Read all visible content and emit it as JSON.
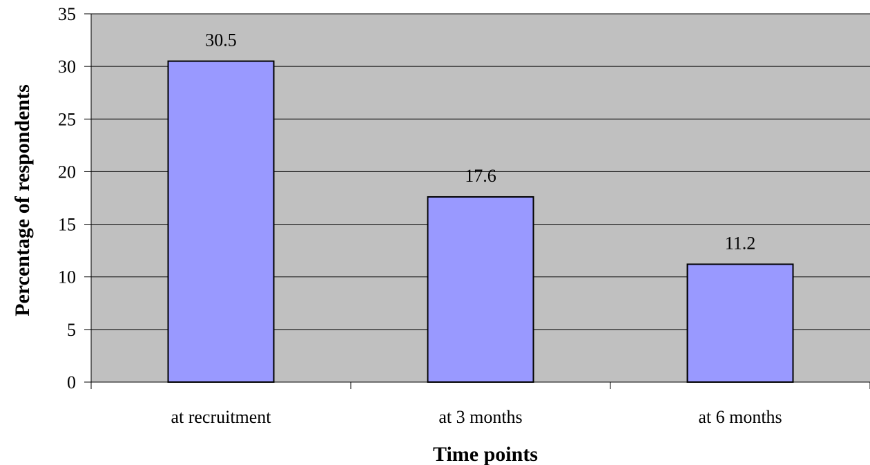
{
  "colors": {
    "plot_background": "#c0c0c0",
    "bar_fill": "#9999ff",
    "bar_stroke": "#000000",
    "gridline": "#000000"
  },
  "chart_data": {
    "type": "bar",
    "categories": [
      "at recruitment",
      "at 3 months",
      "at 6 months"
    ],
    "values": [
      30.5,
      17.6,
      11.2
    ],
    "data_labels": [
      "30.5",
      "17.6",
      "11.2"
    ],
    "title": "",
    "xlabel": "Time points",
    "ylabel": "Percentage of respondents",
    "ylim": [
      0,
      35
    ],
    "yticks": [
      0,
      5,
      10,
      15,
      20,
      25,
      30,
      35
    ],
    "grid": true,
    "legend": "none"
  }
}
